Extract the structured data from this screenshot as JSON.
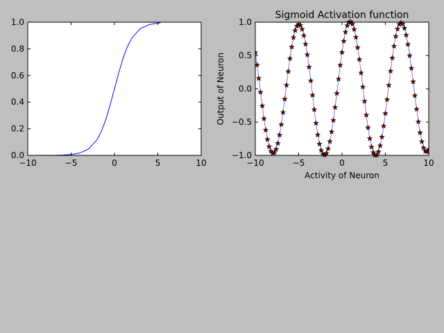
{
  "colors": {
    "figure_bg": "#bfbfbf",
    "axes_bg": "#ffffff",
    "sigmoid_line": "#0000ff",
    "sine_line": "#7777ee",
    "marker_fill": "#8b0000",
    "marker_edge": "#000000"
  },
  "chart_data": [
    {
      "type": "line",
      "title": "",
      "xlabel": "",
      "ylabel": "",
      "xlim": [
        -10,
        10
      ],
      "ylim": [
        0,
        1
      ],
      "xticks": [
        -10,
        -5,
        0,
        5,
        10
      ],
      "xtick_labels": [
        "−10",
        "−5",
        "0",
        "5",
        "10"
      ],
      "yticks": [
        0,
        0.2,
        0.4,
        0.6,
        0.8,
        1.0
      ],
      "ytick_labels": [
        "0.0",
        "0.2",
        "0.4",
        "0.6",
        "0.8",
        "1.0"
      ],
      "grid": false,
      "series": [
        {
          "style": "line",
          "x": [
            -10,
            -9,
            -8,
            -7,
            -6,
            -5,
            -4,
            -3,
            -2,
            -1.5,
            -1,
            -0.5,
            0,
            0.5,
            1,
            1.5,
            2,
            3,
            4,
            5,
            5.3
          ],
          "y": [
            5e-05,
            0.00012,
            0.00034,
            0.0009,
            0.0025,
            0.0067,
            0.018,
            0.047,
            0.119,
            0.182,
            0.269,
            0.378,
            0.5,
            0.622,
            0.731,
            0.818,
            0.881,
            0.953,
            0.982,
            0.9933,
            0.995
          ]
        }
      ]
    },
    {
      "type": "line",
      "title": "Sigmoid Activation function",
      "xlabel": "Activity of Neuron",
      "ylabel": "Output of Neuron",
      "xlim": [
        -10,
        10
      ],
      "ylim": [
        -1,
        1
      ],
      "xticks": [
        -10,
        -5,
        0,
        5,
        10
      ],
      "xtick_labels": [
        "−10",
        "−5",
        "0",
        "5",
        "10"
      ],
      "yticks": [
        -1,
        -0.5,
        0,
        0.5,
        1
      ],
      "ytick_labels": [
        "−1.0",
        "−0.5",
        "0.0",
        "0.5",
        "1.0"
      ],
      "grid": false,
      "series": [
        {
          "style": "line",
          "x_range": [
            -10,
            10
          ],
          "step": 0.1,
          "y_samples": [
            0.544,
            0.455,
            0.359,
            0.26,
            0.158,
            0.054,
            -0.05,
            -0.154,
            -0.256,
            -0.354,
            -0.448,
            -0.537,
            -0.619,
            -0.694,
            -0.76,
            -0.818,
            -0.868,
            -0.908,
            -0.938,
            -0.958,
            -0.968,
            -0.968,
            -0.958,
            -0.938,
            -0.908,
            -0.868,
            -0.818,
            -0.76,
            -0.694,
            -0.619,
            -0.537,
            -0.448,
            -0.354,
            -0.256,
            -0.154,
            -0.05,
            0.054,
            0.158,
            0.26,
            0.359,
            0.455,
            0.544,
            0.627,
            0.703,
            0.77,
            0.828,
            0.876,
            0.914,
            0.942,
            0.96,
            0.968,
            0.965,
            0.952,
            0.928,
            0.895,
            0.852,
            0.8,
            0.74,
            0.672,
            0.596,
            0.512,
            0.423,
            0.327,
            0.227,
            0.122,
            0.014,
            -0.095,
            -0.205,
            -0.312,
            -0.417,
            -0.516,
            -0.607,
            -0.69,
            -0.764,
            -0.828,
            -0.882,
            -0.925,
            -0.958,
            -0.981,
            -0.993,
            -0.995,
            -0.987,
            -0.968,
            -0.938,
            -0.899,
            -0.849,
            -0.79,
            -0.722,
            -0.646,
            -0.563,
            -0.473,
            -0.378,
            -0.278,
            -0.174,
            -0.068,
            0.039,
            0.146,
            0.252,
            0.355,
            0.454,
            0.548,
            0.636,
            0.716,
            0.788,
            0.852,
            0.905,
            0.948,
            0.98,
            1.0,
            1.01,
            1.008,
            0.996,
            0.972,
            0.938,
            0.893,
            0.838,
            0.774,
            0.701,
            0.62,
            0.533,
            0.44,
            0.342,
            0.24,
            0.135,
            0.028,
            -0.08,
            -0.187,
            -0.292,
            -0.394,
            -0.492,
            -0.584,
            -0.669,
            -0.746,
            -0.814,
            -0.872,
            -0.92,
            -0.957,
            -0.983,
            -0.998,
            -1.002,
            -0.995,
            -0.976,
            -0.946,
            -0.905,
            -0.854,
            -0.793,
            -0.723,
            -0.645,
            -0.559,
            -0.467,
            -0.369,
            -0.267,
            -0.162,
            -0.055,
            0.053,
            0.16,
            0.265,
            0.367,
            0.464,
            0.556,
            0.641,
            0.719,
            0.788,
            0.848,
            0.898,
            0.938,
            0.967,
            0.985,
            0.992,
            0.988,
            0.973,
            0.947,
            0.91,
            0.863,
            0.806,
            0.741,
            0.667,
            0.586,
            0.499,
            0.406,
            0.309,
            0.209,
            0.106,
            0.002,
            -0.102,
            -0.205,
            -0.305,
            -0.402,
            -0.494,
            -0.58,
            -0.659,
            -0.73,
            -0.792,
            -0.844,
            -0.886,
            -0.918,
            -0.938,
            -0.948,
            -0.946,
            -0.932,
            -0.908,
            -0.872,
            -0.825,
            -0.768
          ],
          "color": "#7777ee"
        },
        {
          "style": "markers",
          "marker": "star",
          "x_range": [
            -10,
            10
          ],
          "step": 0.2,
          "y_samples": [
            0.544,
            0.359,
            0.158,
            -0.05,
            -0.256,
            -0.448,
            -0.619,
            -0.76,
            -0.868,
            -0.938,
            -0.968,
            -0.958,
            -0.908,
            -0.818,
            -0.694,
            -0.537,
            -0.354,
            -0.154,
            0.054,
            0.26,
            0.455,
            0.627,
            0.77,
            0.876,
            0.942,
            0.968,
            0.952,
            0.895,
            0.8,
            0.672,
            0.512,
            0.327,
            0.122,
            -0.095,
            -0.312,
            -0.516,
            -0.69,
            -0.828,
            -0.925,
            -0.981,
            -0.995,
            -0.968,
            -0.899,
            -0.79,
            -0.646,
            -0.473,
            -0.278,
            -0.068,
            0.146,
            0.355,
            0.548,
            0.716,
            0.852,
            0.948,
            1.0,
            1.008,
            0.972,
            0.893,
            0.774,
            0.62,
            0.44,
            0.24,
            0.028,
            -0.187,
            -0.394,
            -0.584,
            -0.746,
            -0.872,
            -0.957,
            -0.998,
            -0.995,
            -0.946,
            -0.854,
            -0.723,
            -0.559,
            -0.369,
            -0.162,
            0.053,
            0.265,
            0.464,
            0.641,
            0.788,
            0.898,
            0.967,
            0.992,
            0.973,
            0.91,
            0.806,
            0.667,
            0.499,
            0.309,
            0.106,
            -0.102,
            -0.305,
            -0.494,
            -0.659,
            -0.792,
            -0.886,
            -0.938,
            -0.946,
            -0.908
          ],
          "color": "#8b0000"
        }
      ]
    }
  ]
}
